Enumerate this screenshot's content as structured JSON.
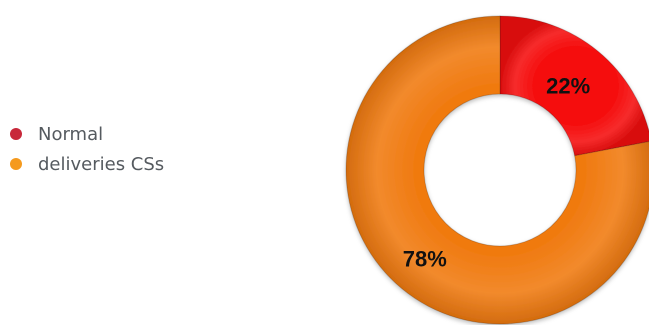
{
  "chart_data": {
    "type": "pie",
    "donut": true,
    "title": "",
    "categories": [
      "Normal",
      "deliveries CSs"
    ],
    "values": [
      22,
      78
    ],
    "data_labels": [
      "22%",
      "78%"
    ],
    "colors": [
      "#f50f0f",
      "#f07a10"
    ],
    "legend_colors": [
      "#c8283a",
      "#f59a1e"
    ],
    "legend": {
      "placement": "left",
      "entries": [
        "Normal",
        "deliveries CSs"
      ]
    }
  }
}
